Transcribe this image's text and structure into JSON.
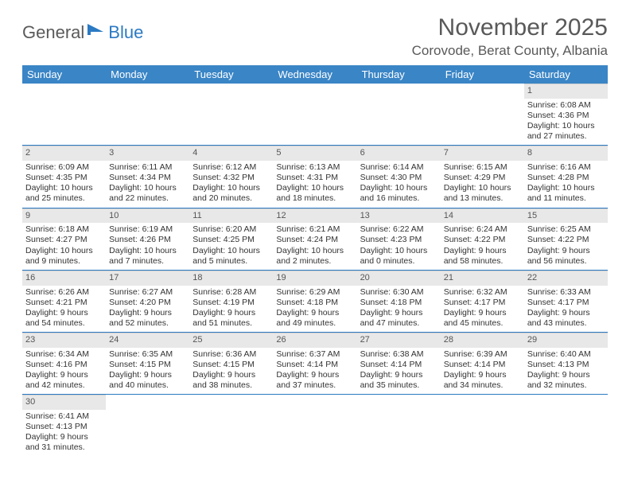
{
  "header": {
    "logo_text_1": "General",
    "logo_text_2": "Blue",
    "month_title": "November 2025",
    "location": "Corovode, Berat County, Albania"
  },
  "colors": {
    "header_bg": "#3a85c6",
    "header_text": "#ffffff",
    "daynum_bg": "#e8e8e8",
    "border": "#2b7ac3",
    "text": "#333333",
    "title_text": "#595959",
    "logo_accent": "#2b7ac3"
  },
  "days": [
    "Sunday",
    "Monday",
    "Tuesday",
    "Wednesday",
    "Thursday",
    "Friday",
    "Saturday"
  ],
  "cells": [
    {
      "n": "",
      "lines": []
    },
    {
      "n": "",
      "lines": []
    },
    {
      "n": "",
      "lines": []
    },
    {
      "n": "",
      "lines": []
    },
    {
      "n": "",
      "lines": []
    },
    {
      "n": "",
      "lines": []
    },
    {
      "n": "1",
      "sunrise": "Sunrise: 6:08 AM",
      "sunset": "Sunset: 4:36 PM",
      "day1": "Daylight: 10 hours",
      "day2": "and 27 minutes."
    },
    {
      "n": "2",
      "sunrise": "Sunrise: 6:09 AM",
      "sunset": "Sunset: 4:35 PM",
      "day1": "Daylight: 10 hours",
      "day2": "and 25 minutes."
    },
    {
      "n": "3",
      "sunrise": "Sunrise: 6:11 AM",
      "sunset": "Sunset: 4:34 PM",
      "day1": "Daylight: 10 hours",
      "day2": "and 22 minutes."
    },
    {
      "n": "4",
      "sunrise": "Sunrise: 6:12 AM",
      "sunset": "Sunset: 4:32 PM",
      "day1": "Daylight: 10 hours",
      "day2": "and 20 minutes."
    },
    {
      "n": "5",
      "sunrise": "Sunrise: 6:13 AM",
      "sunset": "Sunset: 4:31 PM",
      "day1": "Daylight: 10 hours",
      "day2": "and 18 minutes."
    },
    {
      "n": "6",
      "sunrise": "Sunrise: 6:14 AM",
      "sunset": "Sunset: 4:30 PM",
      "day1": "Daylight: 10 hours",
      "day2": "and 16 minutes."
    },
    {
      "n": "7",
      "sunrise": "Sunrise: 6:15 AM",
      "sunset": "Sunset: 4:29 PM",
      "day1": "Daylight: 10 hours",
      "day2": "and 13 minutes."
    },
    {
      "n": "8",
      "sunrise": "Sunrise: 6:16 AM",
      "sunset": "Sunset: 4:28 PM",
      "day1": "Daylight: 10 hours",
      "day2": "and 11 minutes."
    },
    {
      "n": "9",
      "sunrise": "Sunrise: 6:18 AM",
      "sunset": "Sunset: 4:27 PM",
      "day1": "Daylight: 10 hours",
      "day2": "and 9 minutes."
    },
    {
      "n": "10",
      "sunrise": "Sunrise: 6:19 AM",
      "sunset": "Sunset: 4:26 PM",
      "day1": "Daylight: 10 hours",
      "day2": "and 7 minutes."
    },
    {
      "n": "11",
      "sunrise": "Sunrise: 6:20 AM",
      "sunset": "Sunset: 4:25 PM",
      "day1": "Daylight: 10 hours",
      "day2": "and 5 minutes."
    },
    {
      "n": "12",
      "sunrise": "Sunrise: 6:21 AM",
      "sunset": "Sunset: 4:24 PM",
      "day1": "Daylight: 10 hours",
      "day2": "and 2 minutes."
    },
    {
      "n": "13",
      "sunrise": "Sunrise: 6:22 AM",
      "sunset": "Sunset: 4:23 PM",
      "day1": "Daylight: 10 hours",
      "day2": "and 0 minutes."
    },
    {
      "n": "14",
      "sunrise": "Sunrise: 6:24 AM",
      "sunset": "Sunset: 4:22 PM",
      "day1": "Daylight: 9 hours",
      "day2": "and 58 minutes."
    },
    {
      "n": "15",
      "sunrise": "Sunrise: 6:25 AM",
      "sunset": "Sunset: 4:22 PM",
      "day1": "Daylight: 9 hours",
      "day2": "and 56 minutes."
    },
    {
      "n": "16",
      "sunrise": "Sunrise: 6:26 AM",
      "sunset": "Sunset: 4:21 PM",
      "day1": "Daylight: 9 hours",
      "day2": "and 54 minutes."
    },
    {
      "n": "17",
      "sunrise": "Sunrise: 6:27 AM",
      "sunset": "Sunset: 4:20 PM",
      "day1": "Daylight: 9 hours",
      "day2": "and 52 minutes."
    },
    {
      "n": "18",
      "sunrise": "Sunrise: 6:28 AM",
      "sunset": "Sunset: 4:19 PM",
      "day1": "Daylight: 9 hours",
      "day2": "and 51 minutes."
    },
    {
      "n": "19",
      "sunrise": "Sunrise: 6:29 AM",
      "sunset": "Sunset: 4:18 PM",
      "day1": "Daylight: 9 hours",
      "day2": "and 49 minutes."
    },
    {
      "n": "20",
      "sunrise": "Sunrise: 6:30 AM",
      "sunset": "Sunset: 4:18 PM",
      "day1": "Daylight: 9 hours",
      "day2": "and 47 minutes."
    },
    {
      "n": "21",
      "sunrise": "Sunrise: 6:32 AM",
      "sunset": "Sunset: 4:17 PM",
      "day1": "Daylight: 9 hours",
      "day2": "and 45 minutes."
    },
    {
      "n": "22",
      "sunrise": "Sunrise: 6:33 AM",
      "sunset": "Sunset: 4:17 PM",
      "day1": "Daylight: 9 hours",
      "day2": "and 43 minutes."
    },
    {
      "n": "23",
      "sunrise": "Sunrise: 6:34 AM",
      "sunset": "Sunset: 4:16 PM",
      "day1": "Daylight: 9 hours",
      "day2": "and 42 minutes."
    },
    {
      "n": "24",
      "sunrise": "Sunrise: 6:35 AM",
      "sunset": "Sunset: 4:15 PM",
      "day1": "Daylight: 9 hours",
      "day2": "and 40 minutes."
    },
    {
      "n": "25",
      "sunrise": "Sunrise: 6:36 AM",
      "sunset": "Sunset: 4:15 PM",
      "day1": "Daylight: 9 hours",
      "day2": "and 38 minutes."
    },
    {
      "n": "26",
      "sunrise": "Sunrise: 6:37 AM",
      "sunset": "Sunset: 4:14 PM",
      "day1": "Daylight: 9 hours",
      "day2": "and 37 minutes."
    },
    {
      "n": "27",
      "sunrise": "Sunrise: 6:38 AM",
      "sunset": "Sunset: 4:14 PM",
      "day1": "Daylight: 9 hours",
      "day2": "and 35 minutes."
    },
    {
      "n": "28",
      "sunrise": "Sunrise: 6:39 AM",
      "sunset": "Sunset: 4:14 PM",
      "day1": "Daylight: 9 hours",
      "day2": "and 34 minutes."
    },
    {
      "n": "29",
      "sunrise": "Sunrise: 6:40 AM",
      "sunset": "Sunset: 4:13 PM",
      "day1": "Daylight: 9 hours",
      "day2": "and 32 minutes."
    },
    {
      "n": "30",
      "sunrise": "Sunrise: 6:41 AM",
      "sunset": "Sunset: 4:13 PM",
      "day1": "Daylight: 9 hours",
      "day2": "and 31 minutes."
    },
    {
      "n": "",
      "lines": []
    },
    {
      "n": "",
      "lines": []
    },
    {
      "n": "",
      "lines": []
    },
    {
      "n": "",
      "lines": []
    },
    {
      "n": "",
      "lines": []
    },
    {
      "n": "",
      "lines": []
    }
  ]
}
